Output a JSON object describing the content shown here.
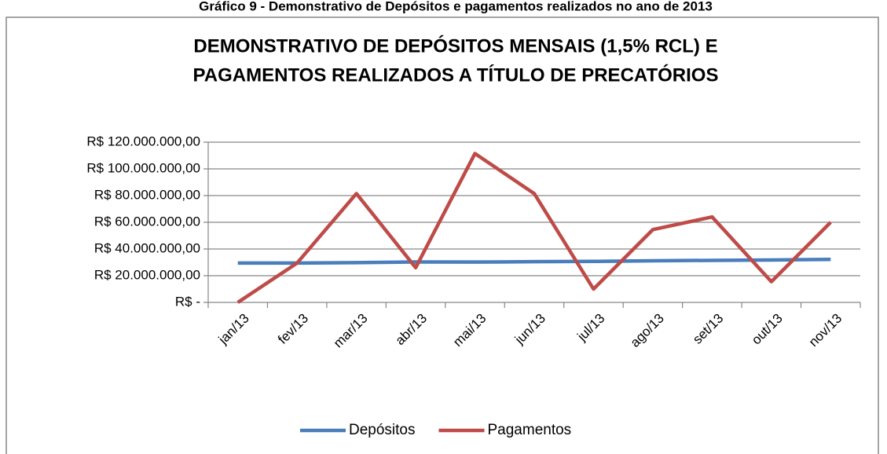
{
  "chart_data": {
    "type": "line",
    "caption": "Gráfico 9 - Demonstrativo de Depósitos e pagamentos realizados no ano de 2013",
    "title": [
      "DEMONSTRATIVO DE DEPÓSITOS MENSAIS (1,5% RCL) E",
      "PAGAMENTOS REALIZADOS A TÍTULO DE PRECATÓRIOS"
    ],
    "categories": [
      "jan/13",
      "fev/13",
      "mar/13",
      "abr/13",
      "mai/13",
      "jun/13",
      "jul/13",
      "ago/13",
      "set/13",
      "out/13",
      "nov/13"
    ],
    "series": [
      {
        "name": "Depósitos",
        "color": "#4a7ebb",
        "values": [
          29500000,
          29500000,
          29800000,
          30300000,
          30200000,
          30500000,
          30700000,
          31200000,
          31500000,
          31800000,
          32200000
        ]
      },
      {
        "name": "Pagamentos",
        "color": "#be4b48",
        "values": [
          0,
          29500000,
          81500000,
          26000000,
          111500000,
          81500000,
          10000000,
          54500000,
          64000000,
          15500000,
          60000000
        ]
      }
    ],
    "ylim": [
      0,
      120000000
    ],
    "yticks": [
      {
        "value": 0,
        "label": "R$ -"
      },
      {
        "value": 20000000,
        "label": "R$ 20.000.000,00"
      },
      {
        "value": 40000000,
        "label": "R$ 40.000.000,00"
      },
      {
        "value": 60000000,
        "label": "R$ 60.000.000,00"
      },
      {
        "value": 80000000,
        "label": "R$ 80.000.000,00"
      },
      {
        "value": 100000000,
        "label": "R$ 100.000.000,00"
      },
      {
        "value": 120000000,
        "label": "R$ 120.000.000,00"
      }
    ],
    "grid": true,
    "legend": "bottom"
  }
}
